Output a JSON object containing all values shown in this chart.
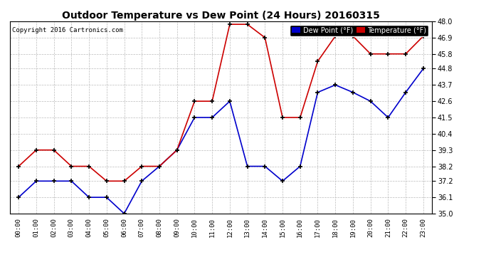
{
  "title": "Outdoor Temperature vs Dew Point (24 Hours) 20160315",
  "copyright": "Copyright 2016 Cartronics.com",
  "hours": [
    "00:00",
    "01:00",
    "02:00",
    "03:00",
    "04:00",
    "05:00",
    "06:00",
    "07:00",
    "08:00",
    "09:00",
    "10:00",
    "11:00",
    "12:00",
    "13:00",
    "14:00",
    "15:00",
    "16:00",
    "17:00",
    "18:00",
    "19:00",
    "20:00",
    "21:00",
    "22:00",
    "23:00"
  ],
  "temp_data": [
    38.2,
    39.3,
    39.3,
    38.2,
    38.2,
    37.2,
    37.2,
    38.2,
    38.2,
    39.3,
    42.6,
    42.6,
    47.8,
    47.8,
    46.9,
    41.5,
    41.5,
    45.3,
    47.0,
    47.0,
    45.8,
    45.8,
    45.8,
    47.0
  ],
  "dew_data": [
    36.1,
    37.2,
    37.2,
    37.2,
    36.1,
    36.1,
    35.0,
    37.2,
    38.2,
    39.3,
    41.5,
    41.5,
    42.6,
    38.2,
    38.2,
    37.2,
    38.2,
    43.2,
    43.7,
    43.2,
    42.6,
    41.5,
    43.2,
    44.8
  ],
  "temp_color": "#cc0000",
  "dew_color": "#0000cc",
  "bg_color": "#ffffff",
  "grid_color": "#bbbbbb",
  "ylim_min": 35.0,
  "ylim_max": 48.0,
  "yticks": [
    35.0,
    36.1,
    37.2,
    38.2,
    39.3,
    40.4,
    41.5,
    42.6,
    43.7,
    44.8,
    45.8,
    46.9,
    48.0
  ],
  "legend_dew_label": "Dew Point (°F)",
  "legend_temp_label": "Temperature (°F)"
}
